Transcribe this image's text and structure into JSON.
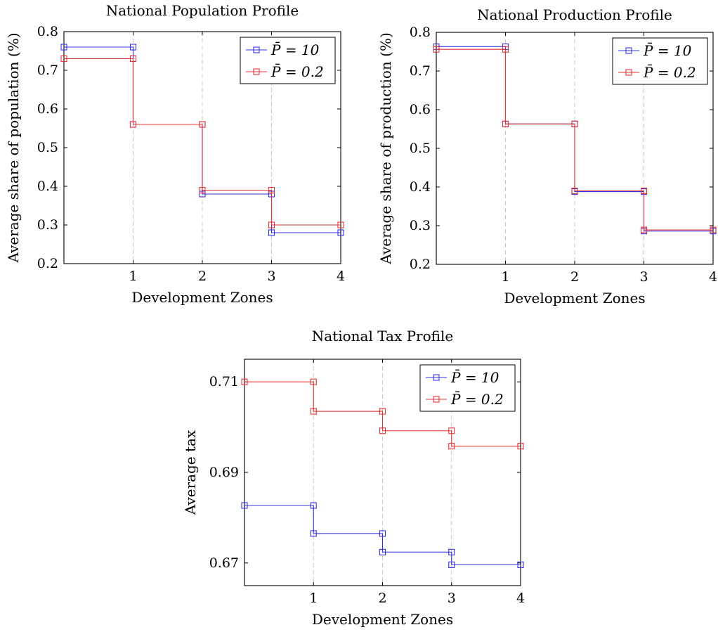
{
  "chart_data": [
    {
      "type": "line",
      "title": "National Population Profile",
      "xlabel": "Development Zones",
      "ylabel": "Average share of population (%)",
      "xlim": [
        0,
        4
      ],
      "ylim": [
        0.2,
        0.8
      ],
      "xticks": [
        1,
        2,
        3,
        4
      ],
      "xtick_labels": [
        "1",
        "2",
        "3",
        "4"
      ],
      "yticks": [
        0.2,
        0.3,
        0.4,
        0.5,
        0.6,
        0.7,
        0.8
      ],
      "ytick_labels": [
        "0.2",
        "0.3",
        "0.4",
        "0.5",
        "0.6",
        "0.7",
        "0.8"
      ],
      "grid": "vertical dashed",
      "legend_position": "top-right",
      "step": "post",
      "series": [
        {
          "name": "P̄ = 10",
          "color": "#3333e6",
          "x": [
            0,
            1,
            1,
            2,
            2,
            3,
            3,
            4
          ],
          "values": [
            0.76,
            0.76,
            0.56,
            0.56,
            0.38,
            0.38,
            0.28,
            0.28
          ]
        },
        {
          "name": "P̄ = 0.2",
          "color": "#e63333",
          "x": [
            0,
            1,
            1,
            2,
            2,
            3,
            3,
            4
          ],
          "values": [
            0.73,
            0.73,
            0.56,
            0.56,
            0.39,
            0.39,
            0.3,
            0.3
          ]
        }
      ]
    },
    {
      "type": "line",
      "title": "National Production Profile",
      "xlabel": "Development Zones",
      "ylabel": "Average share of production (%)",
      "xlim": [
        0,
        4
      ],
      "ylim": [
        0.2,
        0.8
      ],
      "xticks": [
        1,
        2,
        3,
        4
      ],
      "xtick_labels": [
        "1",
        "2",
        "3",
        "4"
      ],
      "yticks": [
        0.2,
        0.3,
        0.4,
        0.5,
        0.6,
        0.7,
        0.8
      ],
      "ytick_labels": [
        "0.2",
        "0.3",
        "0.4",
        "0.5",
        "0.6",
        "0.7",
        "0.8"
      ],
      "grid": "vertical dashed",
      "legend_position": "top-right",
      "step": "post",
      "series": [
        {
          "name": "P̄ = 10",
          "color": "#3333e6",
          "x": [
            0,
            1,
            1,
            2,
            2,
            3,
            3,
            4
          ],
          "values": [
            0.763,
            0.763,
            0.563,
            0.563,
            0.388,
            0.388,
            0.286,
            0.286
          ]
        },
        {
          "name": "P̄ = 0.2",
          "color": "#e63333",
          "x": [
            0,
            1,
            1,
            2,
            2,
            3,
            3,
            4
          ],
          "values": [
            0.756,
            0.756,
            0.563,
            0.563,
            0.39,
            0.39,
            0.289,
            0.289
          ]
        }
      ]
    },
    {
      "type": "line",
      "title": "National Tax Profile",
      "xlabel": "Development Zones",
      "ylabel": "Average tax",
      "xlim": [
        0,
        4
      ],
      "ylim": [
        0.665,
        0.715
      ],
      "xticks": [
        1,
        2,
        3,
        4
      ],
      "xtick_labels": [
        "1",
        "2",
        "3",
        "4"
      ],
      "yticks": [
        0.67,
        0.69,
        0.71
      ],
      "ytick_labels": [
        "0.67",
        "0.69",
        "0.71"
      ],
      "grid": "vertical dashed",
      "legend_position": "top-right",
      "step": "post",
      "series": [
        {
          "name": "P̄ = 10",
          "color": "#3333e6",
          "x": [
            0,
            1,
            1,
            2,
            2,
            3,
            3,
            4
          ],
          "values": [
            0.6827,
            0.6827,
            0.6765,
            0.6765,
            0.6724,
            0.6724,
            0.6696,
            0.6696
          ]
        },
        {
          "name": "P̄ = 0.2",
          "color": "#e63333",
          "x": [
            0,
            1,
            1,
            2,
            2,
            3,
            3,
            4
          ],
          "values": [
            0.71,
            0.71,
            0.7035,
            0.7035,
            0.6992,
            0.6992,
            0.6958,
            0.6958
          ]
        }
      ]
    }
  ]
}
